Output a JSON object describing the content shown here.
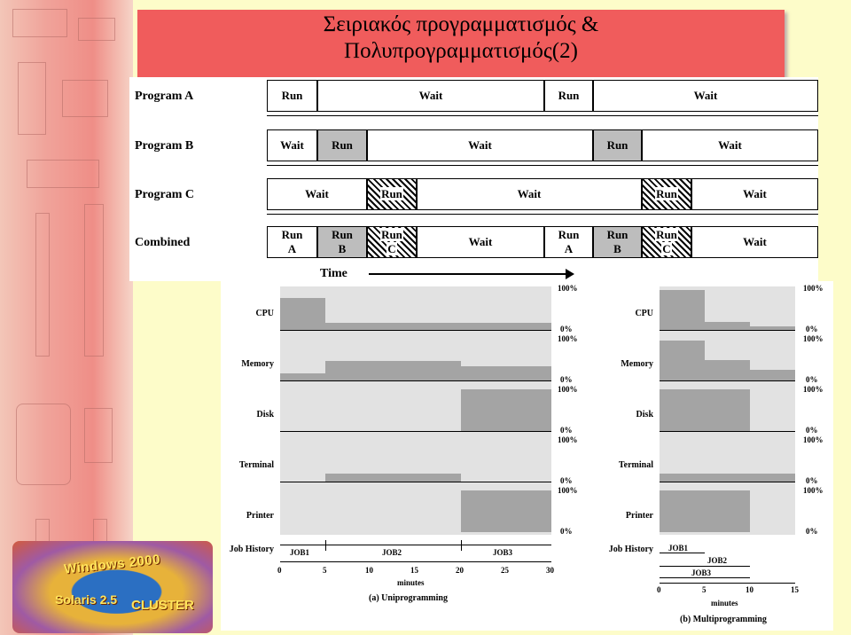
{
  "slide": {
    "title_line1": "Σειριακός προγραμματισμός &",
    "title_line2": "Πολυπρογραμματισμός(2)"
  },
  "logo": {
    "text1": "Windows 2000",
    "text2": "Solaris 2.5",
    "text3": "CLUSTER"
  },
  "timing": {
    "programs": [
      "Program A",
      "Program B",
      "Program C",
      "Combined"
    ],
    "time_label": "Time",
    "run": "Run",
    "wait": "Wait",
    "run_a_1": "Run",
    "run_a_2": "A",
    "run_b_1": "Run",
    "run_b_2": "B",
    "run_c_1": "Run",
    "run_c_2": "C"
  },
  "util": {
    "resources": [
      "CPU",
      "Memory",
      "Disk",
      "Terminal",
      "Printer"
    ],
    "job_history": "Job History",
    "pct100": "100%",
    "pct0": "0%",
    "uni": {
      "ticks": [
        "0",
        "5",
        "10",
        "15",
        "20",
        "25",
        "30"
      ],
      "xlabel": "minutes",
      "caption": "(a) Uniprogramming",
      "jobs": [
        "JOB1",
        "JOB2",
        "JOB3"
      ]
    },
    "multi": {
      "ticks": [
        "0",
        "5",
        "10",
        "15"
      ],
      "xlabel": "minutes",
      "caption": "(b) Multiprogramming",
      "jobs": [
        "JOB1",
        "JOB2",
        "JOB3"
      ]
    }
  }
}
